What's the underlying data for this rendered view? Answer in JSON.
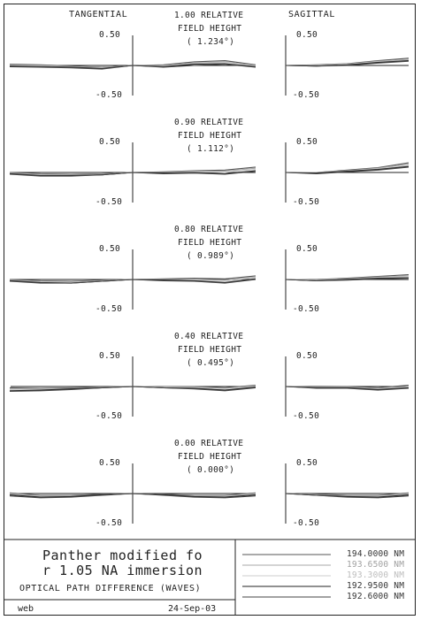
{
  "headers": {
    "tangential": "TANGENTIAL",
    "sagittal": "SAGITTAL"
  },
  "fields": [
    {
      "line1": "1.00 RELATIVE",
      "line2": "FIELD HEIGHT",
      "line3": "( 1.234°)"
    },
    {
      "line1": "0.90 RELATIVE",
      "line2": "FIELD HEIGHT",
      "line3": "( 1.112°)"
    },
    {
      "line1": "0.80 RELATIVE",
      "line2": "FIELD HEIGHT",
      "line3": "( 0.989°)"
    },
    {
      "line1": "0.40 RELATIVE",
      "line2": "FIELD HEIGHT",
      "line3": "( 0.495°)"
    },
    {
      "line1": "0.00 RELATIVE",
      "line2": "FIELD HEIGHT",
      "line3": "( 0.000°)"
    }
  ],
  "axis_labels": {
    "top": "0.50",
    "bottom": "-0.50"
  },
  "footer": {
    "title": "Panther modified fo\nr 1.05 NA immersion",
    "subtitle": "OPTICAL PATH DIFFERENCE (WAVES)",
    "left_note": "web",
    "date": "24-Sep-03"
  },
  "wavelengths": [
    {
      "label": "194.0000 NM",
      "color": "#555555"
    },
    {
      "label": "193.6500 NM",
      "color": "#aaaaaa"
    },
    {
      "label": "193.3000 NM",
      "color": "#cccccc"
    },
    {
      "label": "192.9500 NM",
      "color": "#222222"
    },
    {
      "label": "192.6000 NM",
      "color": "#444444"
    }
  ],
  "chart_data": {
    "type": "line",
    "title": "OPTICAL PATH DIFFERENCE (WAVES)",
    "ylim": [
      -0.5,
      0.5
    ],
    "xlim": [
      -1,
      1
    ],
    "x": [
      -1,
      -0.75,
      -0.5,
      -0.25,
      0,
      0.25,
      0.5,
      0.75,
      1
    ],
    "panels": [
      {
        "field": "1.00",
        "tangential": [
          {
            "name": "194.0000 NM",
            "values": [
              0.02,
              0.01,
              -0.01,
              -0.03,
              0,
              0.01,
              0.06,
              0.08,
              0.01
            ]
          },
          {
            "name": "193.6500 NM",
            "values": [
              0.01,
              0.0,
              -0.02,
              -0.04,
              0,
              0.0,
              0.04,
              0.06,
              0.0
            ]
          },
          {
            "name": "193.3000 NM",
            "values": [
              0.0,
              -0.01,
              -0.02,
              -0.04,
              0,
              -0.01,
              0.03,
              0.05,
              -0.01
            ]
          },
          {
            "name": "192.9500 NM",
            "values": [
              -0.01,
              -0.02,
              -0.03,
              -0.05,
              0,
              -0.02,
              0.02,
              0.03,
              -0.02
            ]
          },
          {
            "name": "192.6000 NM",
            "values": [
              -0.02,
              -0.03,
              -0.04,
              -0.06,
              0,
              -0.03,
              0.0,
              0.02,
              -0.03
            ]
          }
        ],
        "sagittal": [
          {
            "name": "194.0000 NM",
            "values": [
              0,
              0.01,
              0.03,
              0.08,
              0.12
            ]
          },
          {
            "name": "193.6500 NM",
            "values": [
              0,
              0.0,
              0.02,
              0.07,
              0.1
            ]
          },
          {
            "name": "193.3000 NM",
            "values": [
              0,
              0.0,
              0.02,
              0.06,
              0.09
            ]
          },
          {
            "name": "192.9500 NM",
            "values": [
              0,
              -0.01,
              0.01,
              0.05,
              0.08
            ]
          },
          {
            "name": "192.6000 NM",
            "values": [
              0,
              -0.01,
              0.0,
              0.04,
              0.07
            ]
          }
        ]
      },
      {
        "field": "0.90",
        "tangential": [
          {
            "name": "194.0000 NM",
            "values": [
              0.0,
              -0.02,
              -0.03,
              -0.02,
              0,
              0.01,
              0.03,
              0.04,
              0.09
            ]
          },
          {
            "name": "193.6500 NM",
            "values": [
              -0.01,
              -0.03,
              -0.04,
              -0.03,
              0,
              0.0,
              0.02,
              0.02,
              0.07
            ]
          },
          {
            "name": "193.3000 NM",
            "values": [
              -0.02,
              -0.04,
              -0.05,
              -0.03,
              0,
              -0.01,
              0.01,
              0.0,
              0.05
            ]
          },
          {
            "name": "192.9500 NM",
            "values": [
              -0.02,
              -0.05,
              -0.05,
              -0.04,
              0,
              -0.01,
              0.0,
              -0.02,
              0.03
            ]
          },
          {
            "name": "192.6000 NM",
            "values": [
              -0.03,
              -0.06,
              -0.06,
              -0.04,
              0,
              -0.02,
              -0.01,
              -0.03,
              0.02
            ]
          }
        ],
        "sagittal": [
          {
            "name": "194.0000 NM",
            "values": [
              0,
              0.0,
              0.04,
              0.08,
              0.16
            ]
          },
          {
            "name": "193.6500 NM",
            "values": [
              0,
              0.0,
              0.03,
              0.07,
              0.14
            ]
          },
          {
            "name": "193.3000 NM",
            "values": [
              0,
              -0.01,
              0.03,
              0.06,
              0.12
            ]
          },
          {
            "name": "192.9500 NM",
            "values": [
              0,
              -0.01,
              0.02,
              0.05,
              0.1
            ]
          },
          {
            "name": "192.6000 NM",
            "values": [
              0,
              -0.02,
              0.01,
              0.04,
              0.09
            ]
          }
        ]
      },
      {
        "field": "0.80",
        "tangential": [
          {
            "name": "194.0000 NM",
            "values": [
              0.0,
              -0.02,
              -0.03,
              -0.01,
              0,
              0.01,
              0.02,
              0.01,
              0.06
            ]
          },
          {
            "name": "193.6500 NM",
            "values": [
              -0.01,
              -0.03,
              -0.04,
              -0.02,
              0,
              0.0,
              0.0,
              -0.01,
              0.04
            ]
          },
          {
            "name": "193.3000 NM",
            "values": [
              -0.02,
              -0.04,
              -0.05,
              -0.02,
              0,
              -0.01,
              -0.01,
              -0.03,
              0.03
            ]
          },
          {
            "name": "192.9500 NM",
            "values": [
              -0.02,
              -0.05,
              -0.06,
              -0.03,
              0,
              -0.01,
              -0.02,
              -0.05,
              0.01
            ]
          },
          {
            "name": "192.6000 NM",
            "values": [
              -0.03,
              -0.06,
              -0.06,
              -0.03,
              0,
              -0.02,
              -0.03,
              -0.06,
              0.0
            ]
          }
        ],
        "sagittal": [
          {
            "name": "194.0000 NM",
            "values": [
              0,
              0.0,
              0.02,
              0.05,
              0.08
            ]
          },
          {
            "name": "193.6500 NM",
            "values": [
              0,
              -0.01,
              0.01,
              0.04,
              0.06
            ]
          },
          {
            "name": "193.3000 NM",
            "values": [
              0,
              -0.01,
              0.0,
              0.03,
              0.05
            ]
          },
          {
            "name": "192.9500 NM",
            "values": [
              0,
              -0.02,
              0.0,
              0.02,
              0.03
            ]
          },
          {
            "name": "192.6000 NM",
            "values": [
              0,
              -0.02,
              -0.01,
              0.01,
              0.02
            ]
          }
        ]
      },
      {
        "field": "0.40",
        "tangential": [
          {
            "name": "194.0000 NM",
            "values": [
              -0.02,
              -0.03,
              -0.02,
              -0.01,
              0,
              0.0,
              0.0,
              -0.02,
              0.02
            ]
          },
          {
            "name": "193.6500 NM",
            "values": [
              -0.04,
              -0.04,
              -0.03,
              -0.01,
              0,
              -0.01,
              -0.01,
              -0.03,
              0.01
            ]
          },
          {
            "name": "193.3000 NM",
            "values": [
              -0.05,
              -0.05,
              -0.04,
              -0.02,
              0,
              -0.01,
              -0.02,
              -0.05,
              0.0
            ]
          },
          {
            "name": "192.9500 NM",
            "values": [
              -0.07,
              -0.06,
              -0.04,
              -0.02,
              0,
              -0.02,
              -0.03,
              -0.06,
              -0.01
            ]
          },
          {
            "name": "192.6000 NM",
            "values": [
              -0.08,
              -0.07,
              -0.05,
              -0.02,
              0,
              -0.02,
              -0.04,
              -0.07,
              -0.02
            ]
          }
        ],
        "sagittal": [
          {
            "name": "194.0000 NM",
            "values": [
              0,
              -0.01,
              0.0,
              -0.02,
              0.02
            ]
          },
          {
            "name": "193.6500 NM",
            "values": [
              0,
              -0.01,
              -0.01,
              -0.03,
              0.0
            ]
          },
          {
            "name": "193.3000 NM",
            "values": [
              0,
              -0.02,
              -0.02,
              -0.04,
              -0.01
            ]
          },
          {
            "name": "192.9500 NM",
            "values": [
              0,
              -0.02,
              -0.02,
              -0.05,
              -0.02
            ]
          },
          {
            "name": "192.6000 NM",
            "values": [
              0,
              -0.03,
              -0.03,
              -0.06,
              -0.03
            ]
          }
        ]
      },
      {
        "field": "0.00",
        "tangential": [
          {
            "name": "194.0000 NM",
            "values": [
              0.01,
              -0.03,
              -0.03,
              -0.01,
              0,
              -0.01,
              -0.03,
              -0.03,
              0.01
            ]
          },
          {
            "name": "193.6500 NM",
            "values": [
              0.0,
              -0.04,
              -0.04,
              -0.02,
              0,
              -0.02,
              -0.04,
              -0.04,
              0.0
            ]
          },
          {
            "name": "193.3000 NM",
            "values": [
              -0.01,
              -0.05,
              -0.05,
              -0.02,
              0,
              -0.02,
              -0.05,
              -0.05,
              -0.01
            ]
          },
          {
            "name": "192.9500 NM",
            "values": [
              -0.02,
              -0.06,
              -0.05,
              -0.02,
              0,
              -0.02,
              -0.05,
              -0.06,
              -0.02
            ]
          },
          {
            "name": "192.6000 NM",
            "values": [
              -0.04,
              -0.07,
              -0.06,
              -0.03,
              0,
              -0.03,
              -0.06,
              -0.07,
              -0.04
            ]
          }
        ],
        "sagittal": [
          {
            "name": "194.0000 NM",
            "values": [
              0,
              -0.01,
              -0.03,
              -0.03,
              0.01
            ]
          },
          {
            "name": "193.6500 NM",
            "values": [
              0,
              -0.02,
              -0.04,
              -0.04,
              0.0
            ]
          },
          {
            "name": "193.3000 NM",
            "values": [
              0,
              -0.02,
              -0.05,
              -0.05,
              -0.01
            ]
          },
          {
            "name": "192.9500 NM",
            "values": [
              0,
              -0.03,
              -0.05,
              -0.06,
              -0.02
            ]
          },
          {
            "name": "192.6000 NM",
            "values": [
              0,
              -0.03,
              -0.06,
              -0.07,
              -0.04
            ]
          }
        ]
      }
    ]
  }
}
